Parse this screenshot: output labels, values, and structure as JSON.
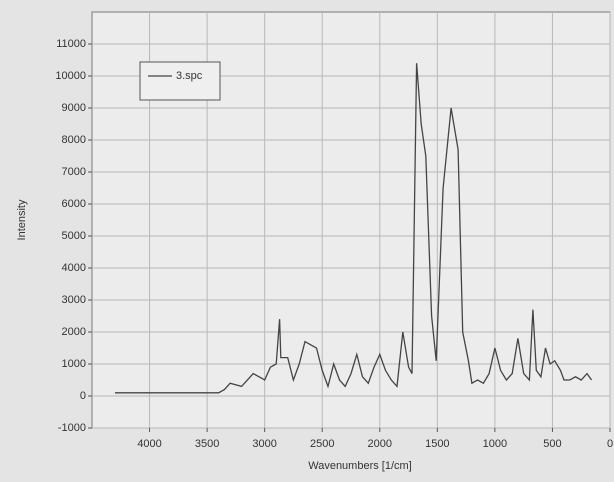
{
  "chart_data": {
    "type": "line",
    "x_label": "Wavenumbers [1/cm]",
    "y_label": "Intensity",
    "x": [
      4300,
      3400,
      3350,
      3300,
      3200,
      3100,
      3000,
      2950,
      2900,
      2870,
      2860,
      2800,
      2750,
      2700,
      2650,
      2600,
      2550,
      2500,
      2450,
      2400,
      2350,
      2300,
      2250,
      2200,
      2150,
      2100,
      2050,
      2000,
      1950,
      1900,
      1850,
      1800,
      1750,
      1720,
      1680,
      1640,
      1600,
      1550,
      1510,
      1450,
      1380,
      1320,
      1280,
      1230,
      1200,
      1150,
      1100,
      1050,
      1000,
      950,
      900,
      850,
      800,
      750,
      700,
      670,
      640,
      600,
      560,
      520,
      480,
      430,
      400,
      350,
      300,
      250,
      200,
      160
    ],
    "series": [
      {
        "name": "3.spc",
        "color": "#444444",
        "values": [
          100,
          100,
          200,
          400,
          300,
          700,
          500,
          900,
          1000,
          2400,
          1200,
          1200,
          500,
          1000,
          1700,
          1600,
          1500,
          800,
          300,
          1000,
          500,
          300,
          700,
          1300,
          600,
          400,
          900,
          1300,
          800,
          500,
          300,
          2000,
          900,
          700,
          10400,
          8500,
          7500,
          2500,
          1100,
          6500,
          9000,
          7700,
          2000,
          1100,
          400,
          500,
          400,
          700,
          1500,
          800,
          500,
          700,
          1800,
          700,
          500,
          2700,
          800,
          600,
          1500,
          1000,
          1100,
          800,
          500,
          500,
          600,
          500,
          700,
          500
        ]
      }
    ],
    "xlim": [
      4500,
      0
    ],
    "xticks": [
      4000,
      3500,
      3000,
      2500,
      2000,
      1500,
      1000,
      500,
      0
    ],
    "ylim": [
      -1000,
      12000
    ],
    "yticks": [
      -1000,
      0,
      1000,
      2000,
      3000,
      4000,
      5000,
      6000,
      7000,
      8000,
      9000,
      10000,
      11000
    ],
    "grid": true,
    "legend": "upper-left"
  }
}
